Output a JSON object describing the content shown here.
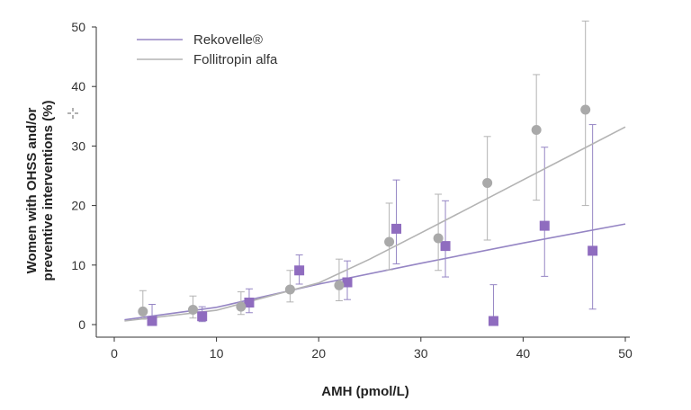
{
  "chart_data": {
    "type": "scatter",
    "xlabel": "AMH (pmol/L)",
    "ylabel": [
      "Women with OHSS and/or",
      "preventive interventions (%)"
    ],
    "xlim": [
      0,
      50
    ],
    "ylim": [
      0,
      50
    ],
    "xticks": [
      0,
      10,
      20,
      30,
      40,
      50
    ],
    "yticks": [
      0,
      10,
      20,
      30,
      40,
      50
    ],
    "grid": false,
    "legend_position": "top-left",
    "series": [
      {
        "name": "Rekovelle®",
        "color": "#8f6cbf",
        "line_color": "#9585c4",
        "marker": "square",
        "points": [
          {
            "x": 3.7,
            "y": 0.6,
            "lo": 0.0,
            "hi": 3.4
          },
          {
            "x": 8.6,
            "y": 1.4,
            "lo": 0.5,
            "hi": 3.0
          },
          {
            "x": 13.2,
            "y": 3.7,
            "lo": 2.0,
            "hi": 6.0
          },
          {
            "x": 18.1,
            "y": 9.1,
            "lo": 6.8,
            "hi": 11.7
          },
          {
            "x": 22.8,
            "y": 7.1,
            "lo": 4.2,
            "hi": 10.7
          },
          {
            "x": 27.6,
            "y": 16.1,
            "lo": 10.2,
            "hi": 24.3
          },
          {
            "x": 32.4,
            "y": 13.2,
            "lo": 8.0,
            "hi": 20.8
          },
          {
            "x": 37.1,
            "y": 0.6,
            "lo": 0.0,
            "hi": 6.7
          },
          {
            "x": 42.1,
            "y": 16.6,
            "lo": 8.1,
            "hi": 29.8
          },
          {
            "x": 46.8,
            "y": 12.4,
            "lo": 2.6,
            "hi": 33.6
          }
        ],
        "fit": [
          [
            1.0,
            0.8
          ],
          [
            10.0,
            2.9
          ],
          [
            20.0,
            6.8
          ],
          [
            30.0,
            10.3
          ],
          [
            40.0,
            13.7
          ],
          [
            50.0,
            16.9
          ]
        ]
      },
      {
        "name": "Follitropin alfa",
        "color": "#a9a9a9",
        "line_color": "#b3b3b3",
        "marker": "circle",
        "points": [
          {
            "x": 2.8,
            "y": 2.2,
            "lo": 0.9,
            "hi": 5.7
          },
          {
            "x": 7.7,
            "y": 2.5,
            "lo": 1.1,
            "hi": 4.8
          },
          {
            "x": 12.4,
            "y": 3.0,
            "lo": 1.7,
            "hi": 5.5
          },
          {
            "x": 17.2,
            "y": 5.9,
            "lo": 3.8,
            "hi": 9.1
          },
          {
            "x": 22.0,
            "y": 6.6,
            "lo": 4.0,
            "hi": 11.0
          },
          {
            "x": 26.9,
            "y": 13.9,
            "lo": 9.2,
            "hi": 20.4
          },
          {
            "x": 31.7,
            "y": 14.5,
            "lo": 9.1,
            "hi": 21.9
          },
          {
            "x": 36.5,
            "y": 23.8,
            "lo": 14.2,
            "hi": 31.6
          },
          {
            "x": 41.3,
            "y": 32.7,
            "lo": 20.9,
            "hi": 42.0
          },
          {
            "x": 46.1,
            "y": 36.1,
            "lo": 20.0,
            "hi": 51.0
          }
        ],
        "fit": [
          [
            1.0,
            0.6
          ],
          [
            10.0,
            2.4
          ],
          [
            20.0,
            7.0
          ],
          [
            25.0,
            11.0
          ],
          [
            30.0,
            15.4
          ],
          [
            40.0,
            24.3
          ],
          [
            50.0,
            33.2
          ]
        ]
      }
    ]
  }
}
